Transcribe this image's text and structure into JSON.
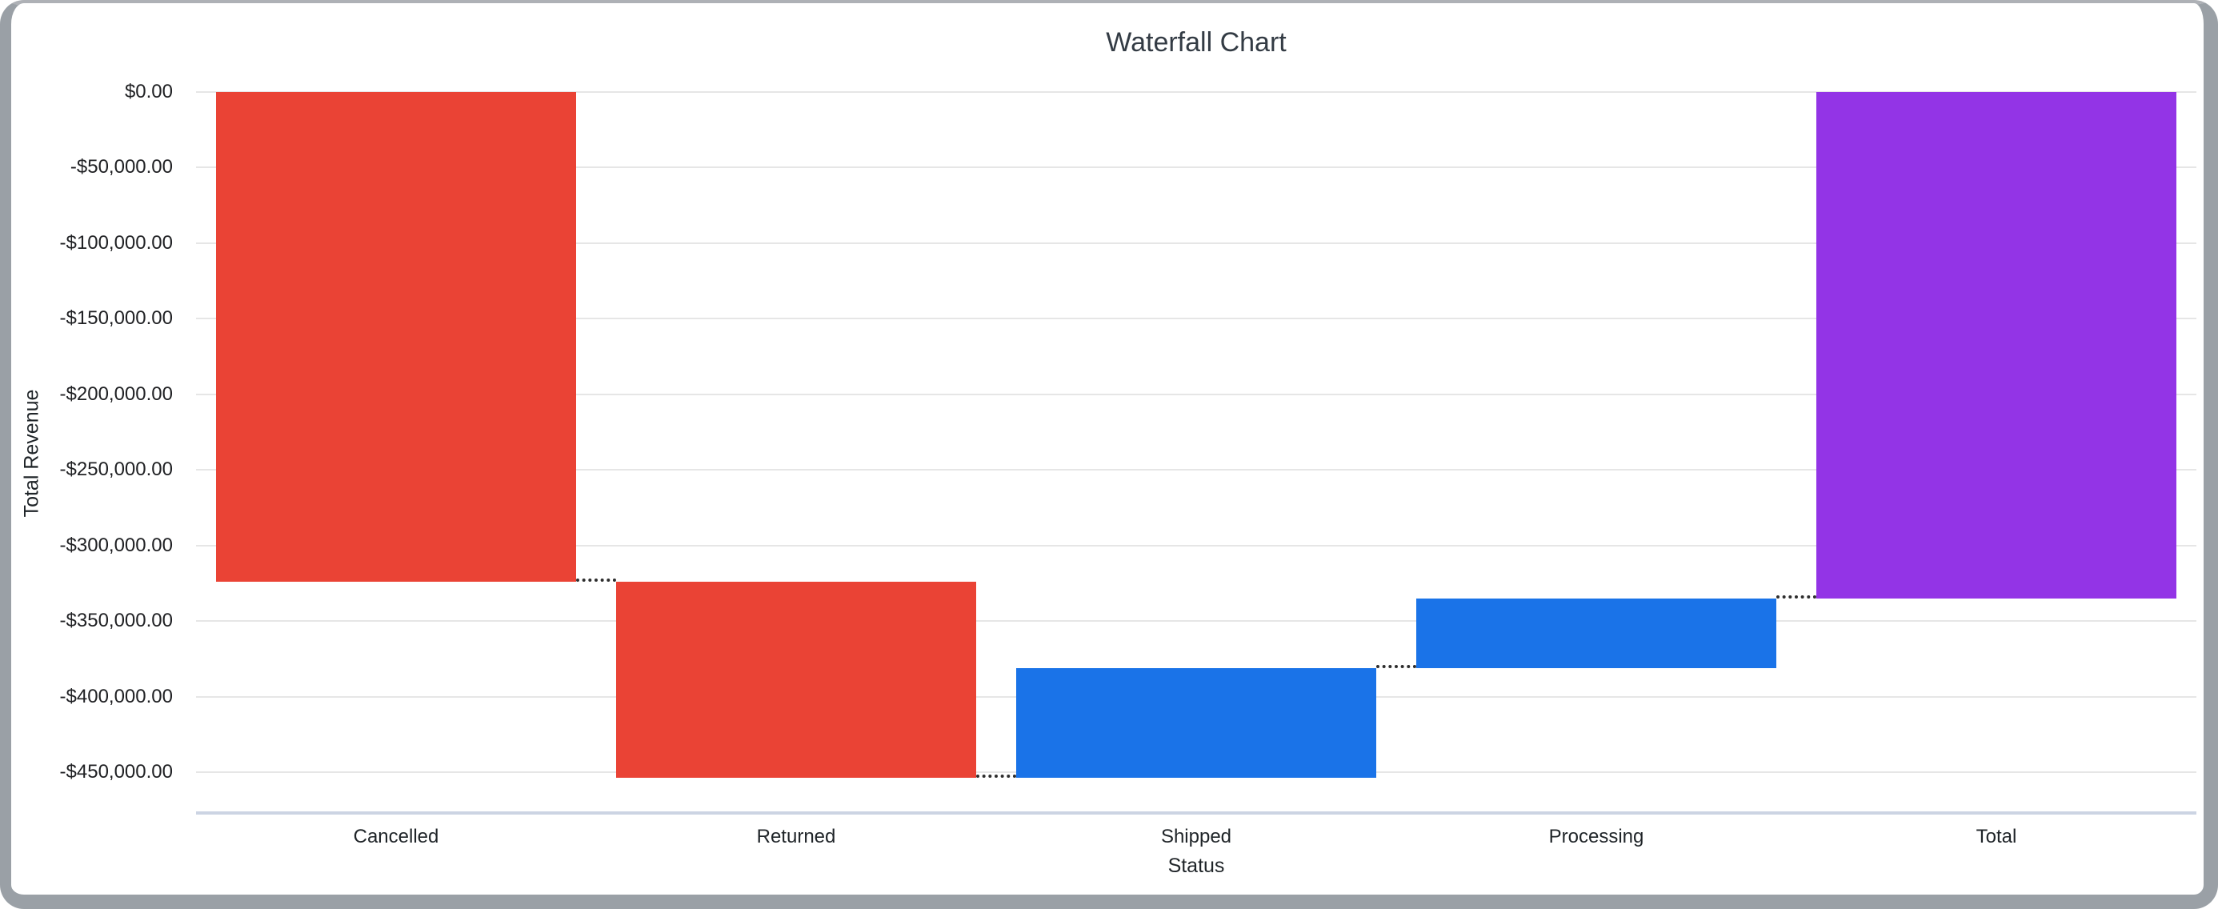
{
  "window": {
    "frame_color": "#9aa0a6",
    "background": "#ffffff"
  },
  "chart_data": {
    "type": "bar",
    "subtype": "waterfall",
    "title": "Waterfall Chart",
    "xlabel": "Status",
    "ylabel": "Total Revenue",
    "legend": "none",
    "grid": true,
    "ylim": [
      -477000,
      0
    ],
    "categories": [
      "Cancelled",
      "Returned",
      "Shipped",
      "Processing",
      "Total"
    ],
    "bars": [
      {
        "label": "Cancelled",
        "start": 0,
        "end": -324000,
        "change": -324000,
        "role": "decrease"
      },
      {
        "label": "Returned",
        "start": -324000,
        "end": -453700,
        "change": -129700,
        "role": "decrease"
      },
      {
        "label": "Shipped",
        "start": -453700,
        "end": -381200,
        "change": 72500,
        "role": "increase"
      },
      {
        "label": "Processing",
        "start": -381200,
        "end": -335000,
        "change": 46200,
        "role": "increase"
      },
      {
        "label": "Total",
        "start": 0,
        "end": -335000,
        "change": -335000,
        "role": "total"
      }
    ],
    "colors": {
      "decrease": "#EA4335",
      "increase": "#1A73E8",
      "total": "#9334E6",
      "connector": "#2e2e2e",
      "gridline": "#e6e6e6",
      "baseline": "#ccd4e3",
      "text": "#202124"
    },
    "y_ticks": [
      {
        "label": "$0.00",
        "value": 0
      },
      {
        "label": "-$50,000.00",
        "value": -50000
      },
      {
        "label": "-$100,000.00",
        "value": -100000
      },
      {
        "label": "-$150,000.00",
        "value": -150000
      },
      {
        "label": "-$200,000.00",
        "value": -200000
      },
      {
        "label": "-$250,000.00",
        "value": -250000
      },
      {
        "label": "-$300,000.00",
        "value": -300000
      },
      {
        "label": "-$350,000.00",
        "value": -350000
      },
      {
        "label": "-$400,000.00",
        "value": -400000
      },
      {
        "label": "-$450,000.00",
        "value": -450000
      }
    ]
  }
}
